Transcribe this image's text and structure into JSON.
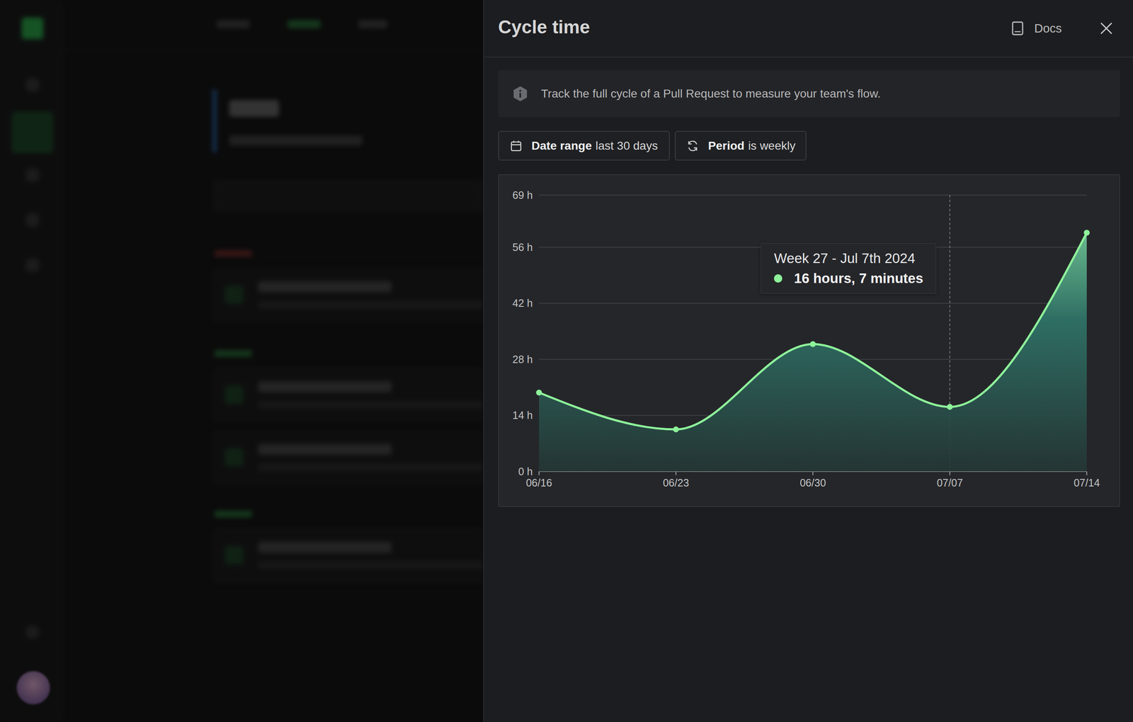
{
  "panel": {
    "docs": "Docs",
    "info": "Track the full cycle of a Pull Request to measure your team's flow.",
    "filters": [
      {
        "label": "Date range",
        "value": "last 30 days"
      },
      {
        "label": "Period",
        "value": "is weekly"
      }
    ]
  },
  "chart_data": {
    "type": "area",
    "title": "Cycle time",
    "categories": [
      "06/16",
      "06/23",
      "06/30",
      "07/07",
      "07/14"
    ],
    "values": [
      19.7,
      10.5,
      31.8,
      16.12,
      59.6
    ],
    "color": "#8ef29a",
    "ylim": [
      0,
      69
    ],
    "yticks": [
      {
        "value": 0,
        "label": "0 h"
      },
      {
        "value": 14,
        "label": "14 h"
      },
      {
        "value": 28,
        "label": "28 h"
      },
      {
        "value": 42,
        "label": "42 h"
      },
      {
        "value": 56,
        "label": "56 h"
      },
      {
        "value": 69,
        "label": "69 h"
      }
    ],
    "grid": true,
    "tooltip": {
      "category": "07/07",
      "title": "Week 27 - Jul 7th 2024",
      "text": "16 hours, 7 minutes"
    }
  }
}
